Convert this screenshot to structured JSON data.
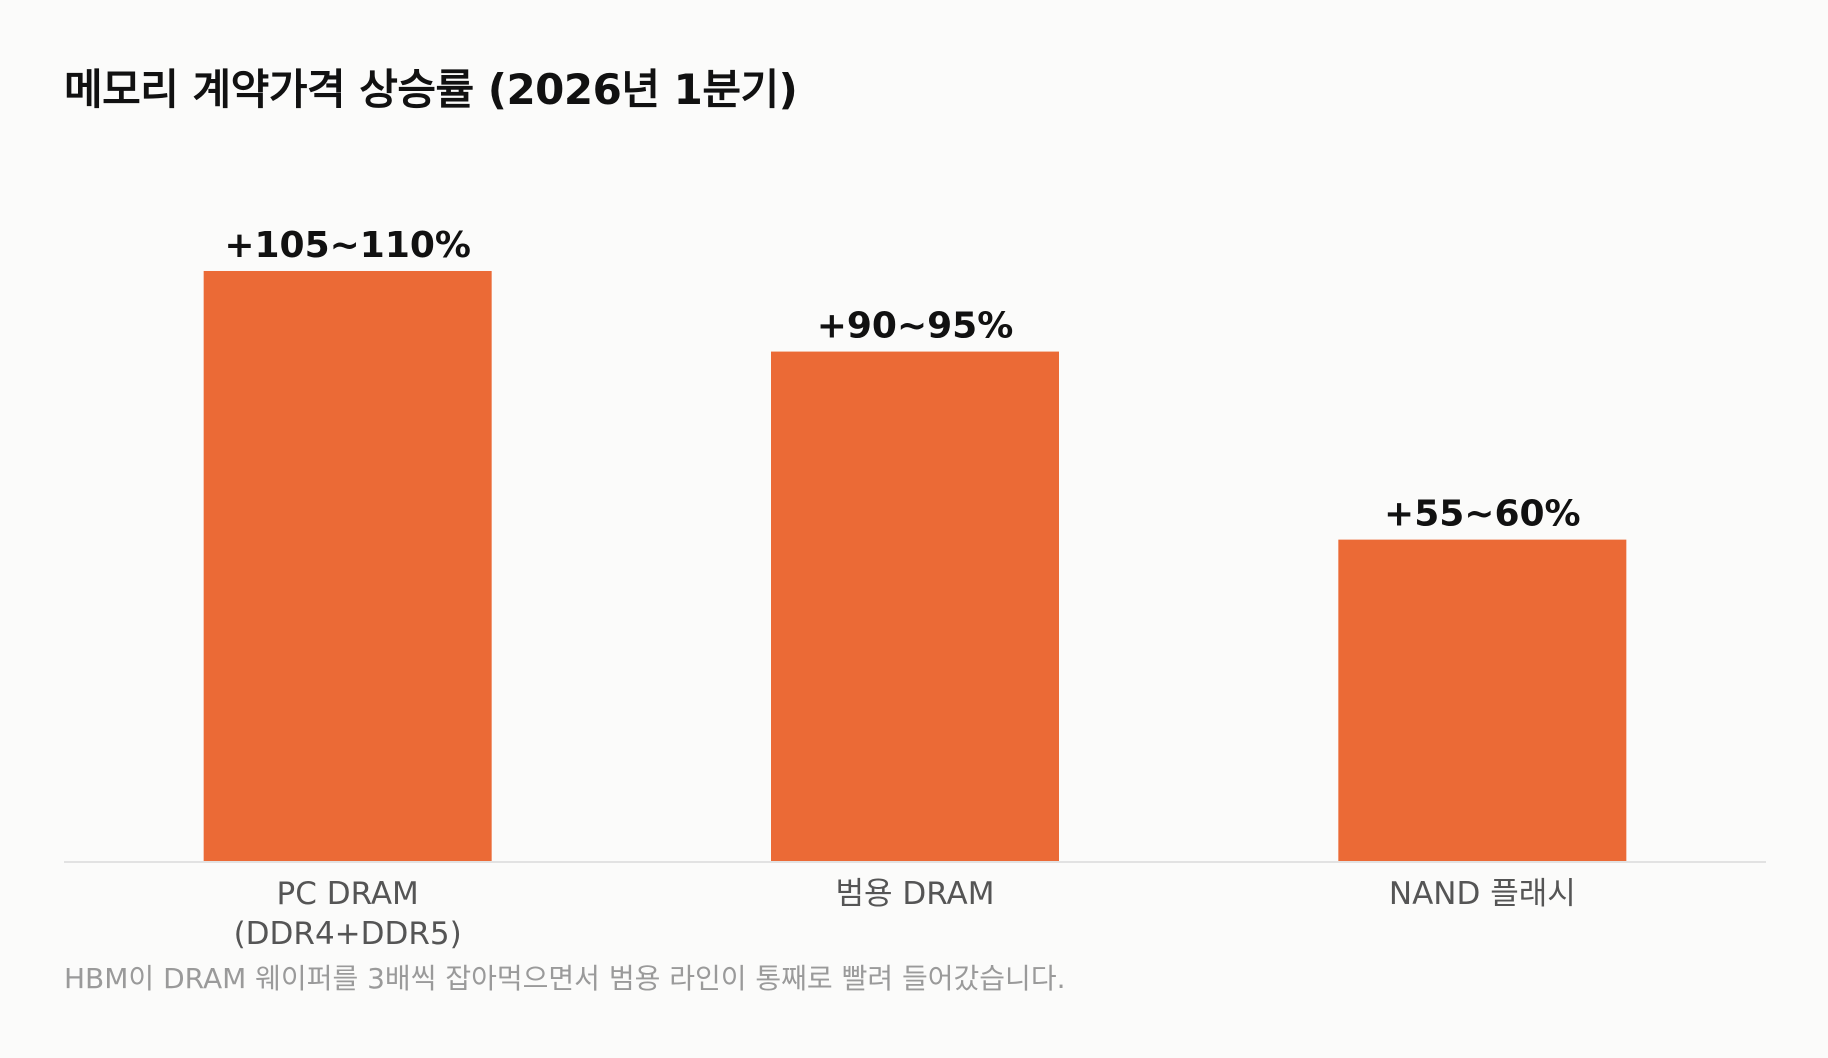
{
  "chart_data": {
    "type": "bar",
    "title": "메모리 계약가격 상승률 (2026년 1분기)",
    "categories": [
      [
        "PC DRAM",
        "(DDR4+DDR5)"
      ],
      [
        "범용 DRAM"
      ],
      [
        "NAND 플래시"
      ]
    ],
    "values": [
      110,
      95,
      60
    ],
    "data_labels": [
      "+105~110%",
      "+90~95%",
      "+55~60%"
    ],
    "ylim": [
      0,
      118
    ],
    "grid": false,
    "legend": "none",
    "bar_color": "#eb6a36",
    "axis_color": "#e2e2e2",
    "xlabel": "",
    "ylabel": ""
  },
  "footnote": "HBM이 DRAM 웨이퍼를 3배씩 잡아먹으면서 범용 라인이 통째로 빨려 들어갔습니다."
}
